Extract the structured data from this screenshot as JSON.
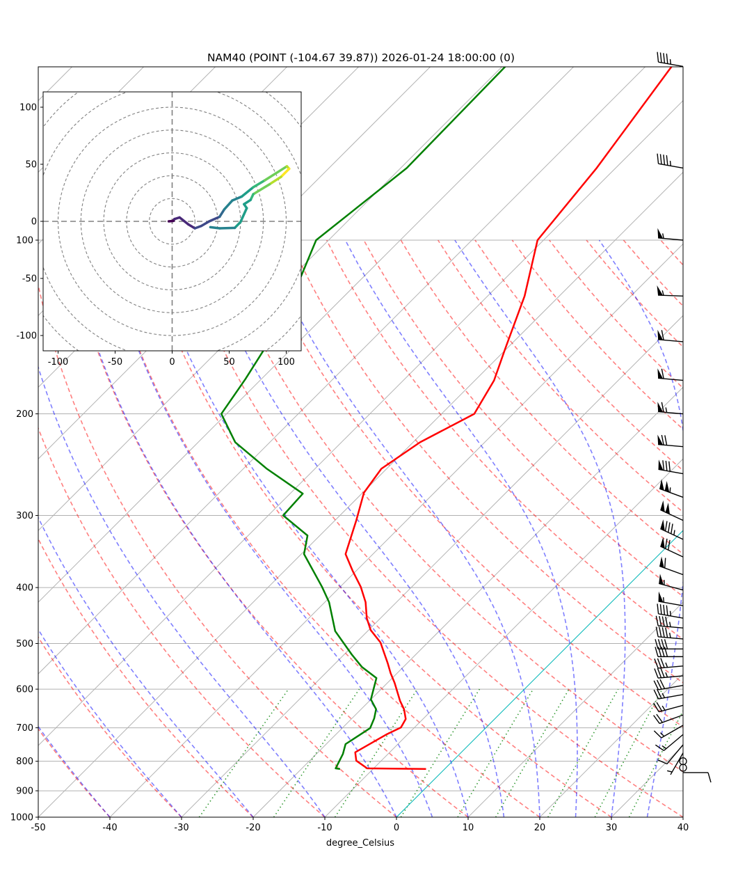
{
  "chart_data": [
    {
      "type": "line",
      "subtype": "skew-t log-p",
      "title": "NAM40 (POINT (-104.67 39.87)) 2026-01-24 18:00:00 (0)",
      "xlabel": "degree_Celsius",
      "ylabel": "",
      "xlim": [
        -50,
        40
      ],
      "ylim": [
        1000,
        50
      ],
      "y_scale": "log",
      "grid": true,
      "x_ticks": [
        "-50",
        "-40",
        "-30",
        "-20",
        "-10",
        "0",
        "10",
        "20",
        "30",
        "40"
      ],
      "y_ticks": [
        "100",
        "200",
        "300",
        "400",
        "500",
        "600",
        "700",
        "800",
        "900",
        "1000"
      ],
      "series": [
        {
          "name": "temperature",
          "color": "#ff0000",
          "points": [
            [
              825,
              -2.6
            ],
            [
              823,
              -10.9
            ],
            [
              798,
              -13.5
            ],
            [
              772,
              -14.8
            ],
            [
              718,
              -12.9
            ],
            [
              699,
              -11.9
            ],
            [
              676,
              -12.4
            ],
            [
              650,
              -14.0
            ],
            [
              629,
              -15.7
            ],
            [
              585,
              -19.0
            ],
            [
              563,
              -20.9
            ],
            [
              541,
              -22.7
            ],
            [
              498,
              -26.6
            ],
            [
              474,
              -29.7
            ],
            [
              452,
              -31.9
            ],
            [
              424,
              -34.3
            ],
            [
              399,
              -37.1
            ],
            [
              374,
              -40.5
            ],
            [
              350,
              -43.8
            ],
            [
              306,
              -47.0
            ],
            [
              274,
              -49.8
            ],
            [
              249,
              -50.7
            ],
            [
              224,
              -49.0
            ],
            [
              200,
              -45.4
            ],
            [
              175,
              -47.3
            ],
            [
              154,
              -50.2
            ],
            [
              125,
              -54.8
            ],
            [
              100,
              -60.8
            ],
            [
              75,
              -62.6
            ],
            [
              50,
              -66.3
            ]
          ]
        },
        {
          "name": "dewpoint",
          "color": "#008000",
          "points": [
            [
              825,
              -14.6
            ],
            [
              823,
              -15.3
            ],
            [
              777,
              -16.3
            ],
            [
              747,
              -17.3
            ],
            [
              701,
              -16.1
            ],
            [
              674,
              -16.9
            ],
            [
              650,
              -17.9
            ],
            [
              625,
              -20.0
            ],
            [
              574,
              -22.2
            ],
            [
              549,
              -25.8
            ],
            [
              522,
              -29.0
            ],
            [
              476,
              -34.5
            ],
            [
              424,
              -39.4
            ],
            [
              399,
              -42.5
            ],
            [
              350,
              -49.6
            ],
            [
              325,
              -51.7
            ],
            [
              300,
              -57.9
            ],
            [
              275,
              -58.2
            ],
            [
              249,
              -66.7
            ],
            [
              224,
              -74.8
            ],
            [
              200,
              -80.7
            ],
            [
              174,
              -82.2
            ],
            [
              156,
              -83.6
            ],
            [
              117,
              -88.5
            ],
            [
              100,
              -91.7
            ],
            [
              75,
              -89.1
            ],
            [
              50,
              -89.5
            ]
          ]
        }
      ],
      "wind_barbs_units": "kt",
      "wind_barbs": [
        [
          50,
          280,
          45
        ],
        [
          75,
          280,
          45
        ],
        [
          100,
          275,
          55
        ],
        [
          125,
          272,
          55
        ],
        [
          150,
          275,
          60
        ],
        [
          175,
          275,
          60
        ],
        [
          200,
          275,
          65
        ],
        [
          228,
          275,
          70
        ],
        [
          254,
          280,
          80
        ],
        [
          279,
          290,
          105
        ],
        [
          306,
          295,
          100
        ],
        [
          330,
          295,
          85
        ],
        [
          354,
          295,
          70
        ],
        [
          380,
          290,
          60
        ],
        [
          404,
          285,
          55
        ],
        [
          430,
          280,
          55
        ],
        [
          452,
          280,
          45
        ],
        [
          470,
          275,
          45
        ],
        [
          491,
          275,
          45
        ],
        [
          511,
          270,
          40
        ],
        [
          527,
          270,
          40
        ],
        [
          547,
          265,
          35
        ],
        [
          569,
          265,
          35
        ],
        [
          591,
          260,
          30
        ],
        [
          613,
          260,
          25
        ],
        [
          640,
          255,
          25
        ],
        [
          665,
          250,
          20
        ],
        [
          693,
          240,
          15
        ],
        [
          719,
          230,
          15
        ],
        [
          749,
          220,
          10
        ],
        [
          774,
          210,
          5
        ],
        [
          800,
          0,
          0
        ],
        [
          821,
          0,
          0
        ],
        [
          837,
          90,
          10
        ]
      ],
      "isotherm_highlight": {
        "temperature": 0,
        "color": "#00bfbf"
      },
      "dry_adiabats_start_degC": [
        -40,
        -30,
        -20,
        -10,
        0,
        10,
        20,
        30,
        40,
        50,
        60,
        70,
        80,
        90,
        100,
        110,
        120,
        130,
        140,
        150,
        160,
        170,
        180,
        190,
        200
      ],
      "moist_adiabats_start_degC": [
        -50,
        -40,
        -30,
        -20,
        -10,
        0,
        5,
        10,
        15,
        20,
        25,
        30,
        35
      ],
      "mixing_ratios": [
        0.0004,
        0.001,
        0.002,
        0.004,
        0.007,
        0.01,
        0.016,
        0.024,
        0.032
      ],
      "colors": {
        "dry_adiabat": "#ff0000",
        "moist_adiabat": "#0000ff",
        "mixing_ratio": "#008000",
        "isotherm": "#808080"
      }
    },
    {
      "type": "line",
      "subtype": "hodograph",
      "xlim": [
        -113,
        113
      ],
      "ylim": [
        -113,
        113
      ],
      "x_ticks": [
        "-100",
        "-50",
        "0",
        "50",
        "100"
      ],
      "y_ticks": [
        "100",
        "50",
        "0",
        "-50",
        "-100"
      ],
      "rings": [
        20,
        40,
        60,
        80,
        100,
        120,
        140,
        160
      ],
      "colormap": "viridis",
      "points_uvc": [
        [
          -3.0,
          0.0,
          0.0
        ],
        [
          1.0,
          0.4,
          0.03
        ],
        [
          2.0,
          2.0,
          0.05
        ],
        [
          6.5,
          3.4,
          0.08
        ],
        [
          14.2,
          -2.7,
          0.12
        ],
        [
          19.9,
          -6.1,
          0.16
        ],
        [
          25.4,
          -4.1,
          0.2
        ],
        [
          32.5,
          0.0,
          0.25
        ],
        [
          41.6,
          4.0,
          0.3
        ],
        [
          45.7,
          10.5,
          0.37
        ],
        [
          52.8,
          18.3,
          0.42
        ],
        [
          61.0,
          21.7,
          0.48
        ],
        [
          71.1,
          29.9,
          0.6
        ],
        [
          81.3,
          36.0,
          0.7
        ],
        [
          100.6,
          48.2,
          0.82
        ],
        [
          102.6,
          46.1,
          0.95
        ],
        [
          95.5,
          39.0,
          1.0
        ],
        [
          85.4,
          32.5,
          0.82
        ],
        [
          71.1,
          23.8,
          0.75
        ],
        [
          68.7,
          18.7,
          0.62
        ],
        [
          63.0,
          15.0,
          0.56
        ],
        [
          65.4,
          11.6,
          0.55
        ],
        [
          59.9,
          -0.6,
          0.53
        ],
        [
          54.9,
          -5.7,
          0.5
        ],
        [
          41.6,
          -6.1,
          0.47
        ],
        [
          33.5,
          -5.1,
          0.42
        ]
      ]
    }
  ]
}
